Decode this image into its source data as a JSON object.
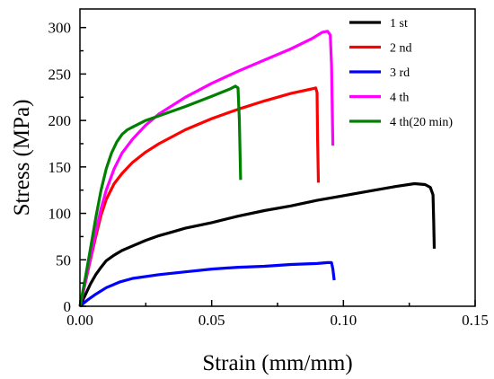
{
  "chart_data": {
    "type": "line",
    "title": "",
    "xlabel": "Strain (mm/mm)",
    "ylabel": "Stress (MPa)",
    "xlim": [
      0.0,
      0.15
    ],
    "ylim": [
      0,
      320
    ],
    "xticks": [
      0.0,
      0.05,
      0.1,
      0.15
    ],
    "xtick_labels": [
      "0.00",
      "0.05",
      "0.10",
      "0.15"
    ],
    "yticks": [
      0,
      50,
      100,
      150,
      200,
      250,
      300
    ],
    "ytick_labels": [
      "0",
      "50",
      "100",
      "150",
      "200",
      "250",
      "300"
    ],
    "grid": false,
    "legend_position": "top-right",
    "series": [
      {
        "name": "1 st",
        "color": "#000000",
        "points": [
          [
            0,
            0
          ],
          [
            0.002,
            12
          ],
          [
            0.004,
            24
          ],
          [
            0.006,
            34
          ],
          [
            0.008,
            42
          ],
          [
            0.01,
            49
          ],
          [
            0.013,
            55
          ],
          [
            0.016,
            60
          ],
          [
            0.02,
            65
          ],
          [
            0.025,
            71
          ],
          [
            0.03,
            76
          ],
          [
            0.035,
            80
          ],
          [
            0.04,
            84
          ],
          [
            0.05,
            90
          ],
          [
            0.06,
            97
          ],
          [
            0.07,
            103
          ],
          [
            0.08,
            108
          ],
          [
            0.09,
            114
          ],
          [
            0.1,
            119
          ],
          [
            0.11,
            124
          ],
          [
            0.12,
            129
          ],
          [
            0.127,
            132
          ],
          [
            0.131,
            131
          ],
          [
            0.133,
            128
          ],
          [
            0.134,
            120
          ],
          [
            0.1343,
            90
          ],
          [
            0.1345,
            62
          ]
        ]
      },
      {
        "name": "2 nd",
        "color": "#ff0000",
        "points": [
          [
            0,
            0
          ],
          [
            0.002,
            25
          ],
          [
            0.004,
            50
          ],
          [
            0.006,
            75
          ],
          [
            0.008,
            98
          ],
          [
            0.01,
            115
          ],
          [
            0.013,
            132
          ],
          [
            0.016,
            143
          ],
          [
            0.02,
            155
          ],
          [
            0.025,
            166
          ],
          [
            0.03,
            175
          ],
          [
            0.04,
            190
          ],
          [
            0.05,
            202
          ],
          [
            0.06,
            212
          ],
          [
            0.07,
            221
          ],
          [
            0.08,
            229
          ],
          [
            0.088,
            234
          ],
          [
            0.0895,
            235
          ],
          [
            0.09,
            230
          ],
          [
            0.0902,
            180
          ],
          [
            0.0905,
            133
          ]
        ]
      },
      {
        "name": "3 rd",
        "color": "#0000ff",
        "points": [
          [
            0,
            0
          ],
          [
            0.003,
            7
          ],
          [
            0.006,
            13
          ],
          [
            0.01,
            20
          ],
          [
            0.015,
            26
          ],
          [
            0.02,
            30
          ],
          [
            0.03,
            34
          ],
          [
            0.04,
            37
          ],
          [
            0.05,
            40
          ],
          [
            0.06,
            42
          ],
          [
            0.07,
            43
          ],
          [
            0.08,
            45
          ],
          [
            0.09,
            46
          ],
          [
            0.094,
            47
          ],
          [
            0.0955,
            47
          ],
          [
            0.096,
            40
          ],
          [
            0.0965,
            28
          ]
        ]
      },
      {
        "name": "4 th",
        "color": "#ff00ff",
        "points": [
          [
            0,
            0
          ],
          [
            0.002,
            25
          ],
          [
            0.004,
            52
          ],
          [
            0.006,
            80
          ],
          [
            0.008,
            105
          ],
          [
            0.01,
            125
          ],
          [
            0.013,
            148
          ],
          [
            0.016,
            165
          ],
          [
            0.02,
            180
          ],
          [
            0.025,
            195
          ],
          [
            0.03,
            207
          ],
          [
            0.04,
            225
          ],
          [
            0.05,
            240
          ],
          [
            0.06,
            253
          ],
          [
            0.07,
            265
          ],
          [
            0.08,
            277
          ],
          [
            0.088,
            288
          ],
          [
            0.092,
            295
          ],
          [
            0.094,
            296
          ],
          [
            0.095,
            292
          ],
          [
            0.0955,
            260
          ],
          [
            0.096,
            173
          ]
        ]
      },
      {
        "name": "4 th(20 min)",
        "color": "#008000",
        "points": [
          [
            0,
            0
          ],
          [
            0.002,
            30
          ],
          [
            0.004,
            62
          ],
          [
            0.006,
            95
          ],
          [
            0.008,
            125
          ],
          [
            0.01,
            148
          ],
          [
            0.012,
            165
          ],
          [
            0.014,
            177
          ],
          [
            0.016,
            185
          ],
          [
            0.018,
            190
          ],
          [
            0.02,
            193
          ],
          [
            0.025,
            200
          ],
          [
            0.03,
            205
          ],
          [
            0.04,
            215
          ],
          [
            0.05,
            226
          ],
          [
            0.057,
            234
          ],
          [
            0.059,
            237
          ],
          [
            0.06,
            235
          ],
          [
            0.0605,
            200
          ],
          [
            0.061,
            136
          ]
        ]
      }
    ]
  }
}
